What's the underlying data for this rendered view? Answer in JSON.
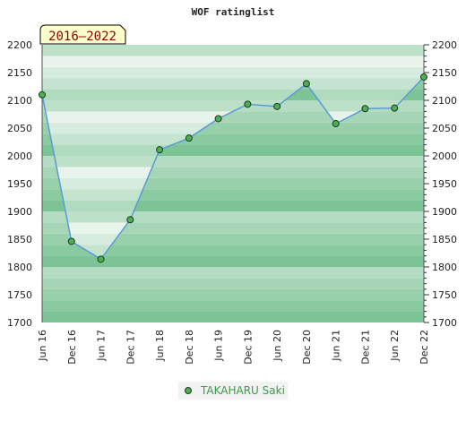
{
  "chart_data": {
    "type": "line",
    "title": "WOF ratinglist",
    "period_badge": "2016–2022",
    "xlabel": "",
    "ylabel": "",
    "ylim": [
      1700,
      2200
    ],
    "y_ticks": [
      1700,
      1750,
      1800,
      1850,
      1900,
      1950,
      2000,
      2050,
      2100,
      2150,
      2200
    ],
    "categories": [
      "Jun 16",
      "Dec 16",
      "Jun 17",
      "Dec 17",
      "Jun 18",
      "Dec 18",
      "Jun 19",
      "Dec 19",
      "Jun 20",
      "Dec 20",
      "Jun 21",
      "Dec 21",
      "Jun 22",
      "Dec 22"
    ],
    "series": [
      {
        "name": "TAKAHARU Saki",
        "values": [
          2110,
          1846,
          1814,
          1885,
          2011,
          2032,
          2067,
          2093,
          2089,
          2130,
          2058,
          2085,
          2086,
          2142
        ]
      }
    ],
    "grid": true,
    "legend_position": "bottom"
  },
  "colors": {
    "band_dark": "#7cc495",
    "band_light": "#f0f7f2",
    "line": "#5b9bd5",
    "marker_fill": "#4caf50",
    "marker_stroke": "#1f3a24",
    "badge_fill": "#ffffcc",
    "legend_text": "#3a9a4a"
  }
}
